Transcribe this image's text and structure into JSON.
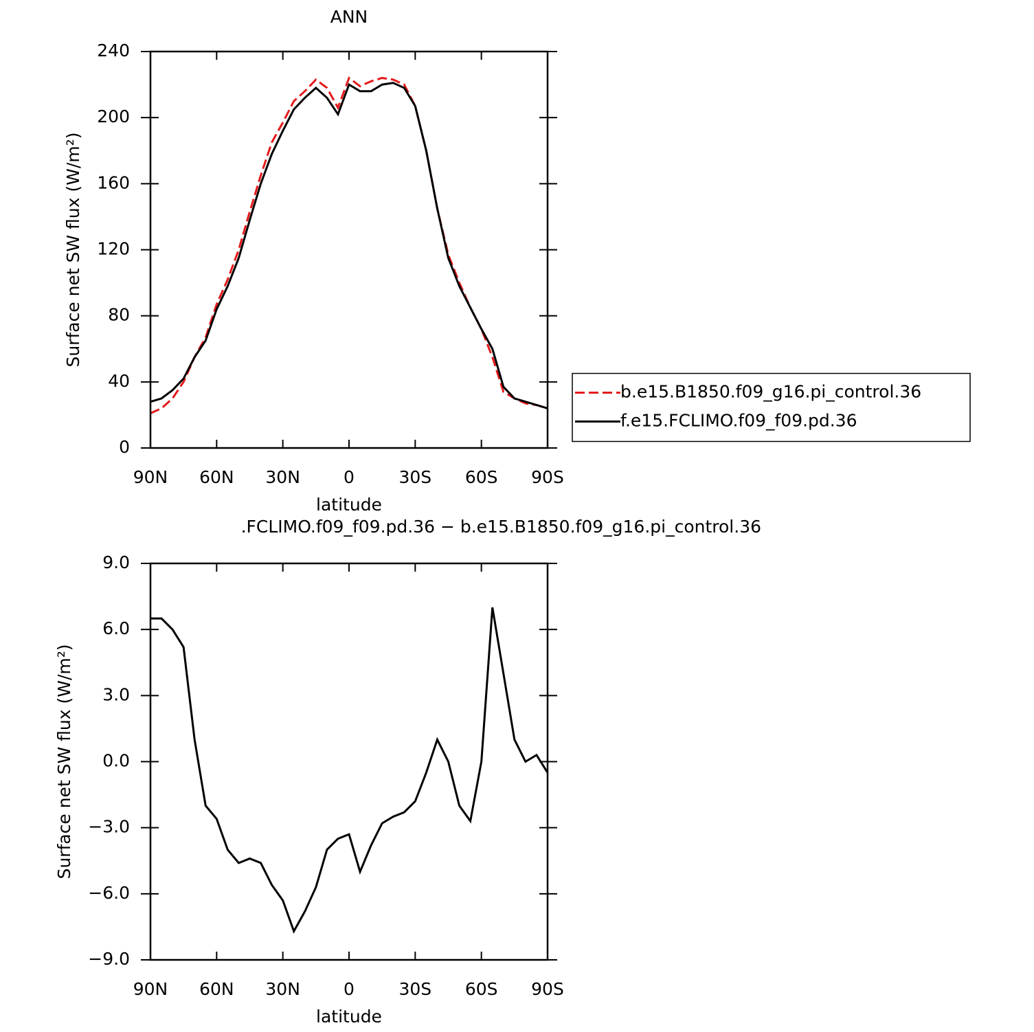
{
  "chart_data": [
    {
      "type": "line",
      "title": "ANN",
      "x_label": "latitude",
      "y_label": "Surface net SW flux (W/m²)",
      "x": [
        90,
        85,
        80,
        75,
        70,
        65,
        60,
        55,
        50,
        45,
        40,
        35,
        30,
        25,
        20,
        15,
        10,
        5,
        0,
        -5,
        -10,
        -15,
        -20,
        -25,
        -30,
        -35,
        -40,
        -45,
        -50,
        -55,
        -60,
        -65,
        -70,
        -75,
        -80,
        -85,
        -90
      ],
      "series": [
        {
          "name": "b.e15.B1850.f09_g16.pi_control.36",
          "color": "#e41a1c",
          "dash": true,
          "values": [
            21,
            24,
            30,
            40,
            55,
            67,
            87,
            102,
            120,
            143,
            165,
            185,
            197,
            210,
            216,
            223,
            218,
            206,
            224,
            219,
            222,
            224,
            223,
            220,
            207,
            180,
            145,
            117,
            100,
            85,
            72,
            55,
            34,
            30,
            27,
            26,
            24
          ]
        },
        {
          "name": "f.e15.FCLIMO.f09_f09.pd.36",
          "color": "#000000",
          "dash": false,
          "values": [
            28,
            30,
            35,
            42,
            55,
            65,
            84,
            98,
            115,
            138,
            160,
            178,
            192,
            205,
            212,
            218,
            212,
            202,
            220,
            216,
            216,
            220,
            221,
            218,
            207,
            180,
            145,
            115,
            98,
            85,
            72,
            60,
            37,
            30,
            28,
            26,
            24
          ]
        }
      ],
      "xlim": [
        90,
        -90
      ],
      "xticks": [
        {
          "value": 90,
          "label": "90N"
        },
        {
          "value": 60,
          "label": "60N"
        },
        {
          "value": 30,
          "label": "30N"
        },
        0,
        {
          "value": -30,
          "label": "30S"
        },
        {
          "value": -60,
          "label": "60S"
        },
        {
          "value": -90,
          "label": "90S"
        }
      ],
      "ylim": [
        0,
        240
      ],
      "yticks": [
        0,
        40,
        80,
        120,
        160,
        200,
        240
      ],
      "legend": "right"
    },
    {
      "type": "line",
      "title": ".FCLIMO.f09_f09.pd.36 − b.e15.B1850.f09_g16.pi_control.36",
      "x_label": "latitude",
      "y_label": "Surface net SW flux (W/m²)",
      "x": [
        90,
        85,
        80,
        75,
        70,
        65,
        60,
        55,
        50,
        45,
        40,
        35,
        30,
        25,
        20,
        15,
        10,
        5,
        0,
        -5,
        -10,
        -15,
        -20,
        -25,
        -30,
        -35,
        -40,
        -45,
        -50,
        -55,
        -60,
        -65,
        -70,
        -75,
        -80,
        -85,
        -90
      ],
      "series": [
        {
          "color": "#000000",
          "dash": false,
          "values": [
            6.5,
            6.5,
            6.0,
            5.2,
            1.0,
            -2.0,
            -2.6,
            -4.0,
            -4.6,
            -4.4,
            -4.6,
            -5.6,
            -6.3,
            -7.7,
            -6.8,
            -5.7,
            -4.0,
            -3.5,
            -3.3,
            -5.0,
            -3.8,
            -2.8,
            -2.5,
            -2.3,
            -1.8,
            -0.5,
            1.0,
            0.0,
            -2.0,
            -2.7,
            0.0,
            7.0,
            4.0,
            1.0,
            0.0,
            0.3,
            -0.5
          ]
        }
      ],
      "xlim": [
        90,
        -90
      ],
      "xticks": [
        {
          "value": 90,
          "label": "90N"
        },
        {
          "value": 60,
          "label": "60N"
        },
        {
          "value": 30,
          "label": "30N"
        },
        0,
        {
          "value": -30,
          "label": "30S"
        },
        {
          "value": -60,
          "label": "60S"
        },
        {
          "value": -90,
          "label": "90S"
        }
      ],
      "ylim": [
        -9,
        9
      ],
      "yticks": [
        {
          "value": -9,
          "label": "−9.0"
        },
        {
          "value": -6,
          "label": "−6.0"
        },
        {
          "value": -3,
          "label": "−3.0"
        },
        {
          "value": 0,
          "label": "0.0"
        },
        {
          "value": 3,
          "label": "3.0"
        },
        {
          "value": 6,
          "label": "6.0"
        },
        {
          "value": 9,
          "label": "9.0"
        }
      ]
    }
  ]
}
